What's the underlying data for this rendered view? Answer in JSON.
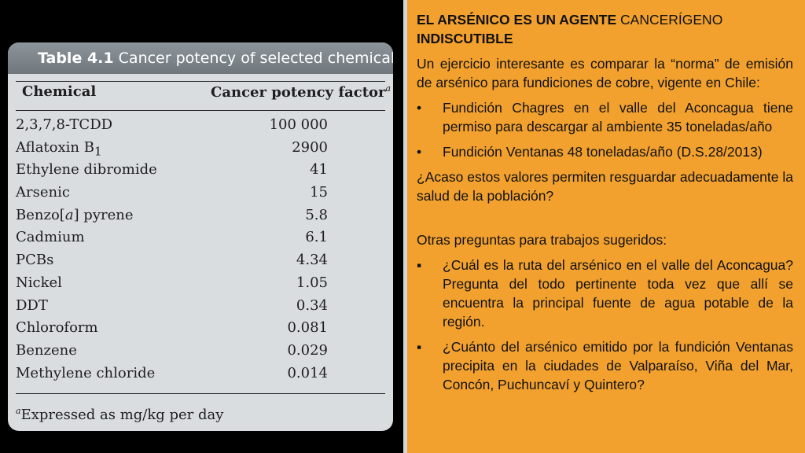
{
  "table": {
    "title_number": "Table 4.1",
    "title_text": "Cancer potency of selected chemicals",
    "header_chemical": "Chemical",
    "header_factor": "Cancer potency factor",
    "header_factor_note": "a",
    "rows": [
      {
        "chemical": "2,3,7,8-TCDD",
        "value": "100 000"
      },
      {
        "chemical": "Aflatoxin B",
        "sub": "1",
        "value": "2900"
      },
      {
        "chemical": "Ethylene dibromide",
        "value": "41"
      },
      {
        "chemical": "Arsenic",
        "value": "15"
      },
      {
        "chemical_pre": "Benzo[",
        "chemical_it": "a",
        "chemical_post": "] pyrene",
        "value": "5.8"
      },
      {
        "chemical": "Cadmium",
        "value": "6.1"
      },
      {
        "chemical": "PCBs",
        "value": "4.34"
      },
      {
        "chemical": "Nickel",
        "value": "1.05"
      },
      {
        "chemical": "DDT",
        "value": "0.34"
      },
      {
        "chemical": "Chloroform",
        "value": "0.081"
      },
      {
        "chemical": "Benzene",
        "value": "0.029"
      },
      {
        "chemical": "Methylene chloride",
        "value": "0.014"
      }
    ],
    "footnote_mark": "a",
    "footnote_text": "Expressed as mg/kg per day"
  },
  "text": {
    "heading_part1": "EL ARSÉNICO",
    "heading_part2": "ES UN AGENTE",
    "heading_part3": "CANCERÍGENO",
    "heading_part4": "INDISCUTIBLE",
    "intro": "Un ejercicio interesante es comparar la “norma” de emisión de arsénico para fundiciones de cobre, vigente en Chile:",
    "bullets_a": [
      {
        "mark": "•",
        "text": "Fundición Chagres en el valle del Aconcagua tiene permiso para descargar al ambiente 35 toneladas/año"
      },
      {
        "mark": "•",
        "text": "Fundición Ventanas 48 toneladas/año (D.S.28/2013)"
      }
    ],
    "question": "¿Acaso estos valores permiten resguardar adecuadamente la salud de la población?",
    "other_heading": "Otras preguntas para trabajos sugeridos:",
    "bullets_b": [
      {
        "mark": "▪",
        "text": "¿Cuál es la ruta del arsénico en el valle del Aconcagua? Pregunta del todo pertinente toda vez que allí se encuentra la principal fuente de agua potable de la región."
      },
      {
        "mark": "▪",
        "text": "¿Cuánto del arsénico emitido por la fundición Ventanas precipita en la ciudades de Valparaíso, Viña del Mar, Concón, Puchuncaví y Quintero?"
      }
    ]
  },
  "colors": {
    "background": "#000000",
    "table_bg": "#d9dde0",
    "title_bar": "#7b8389",
    "text_panel": "#f2a12f"
  }
}
